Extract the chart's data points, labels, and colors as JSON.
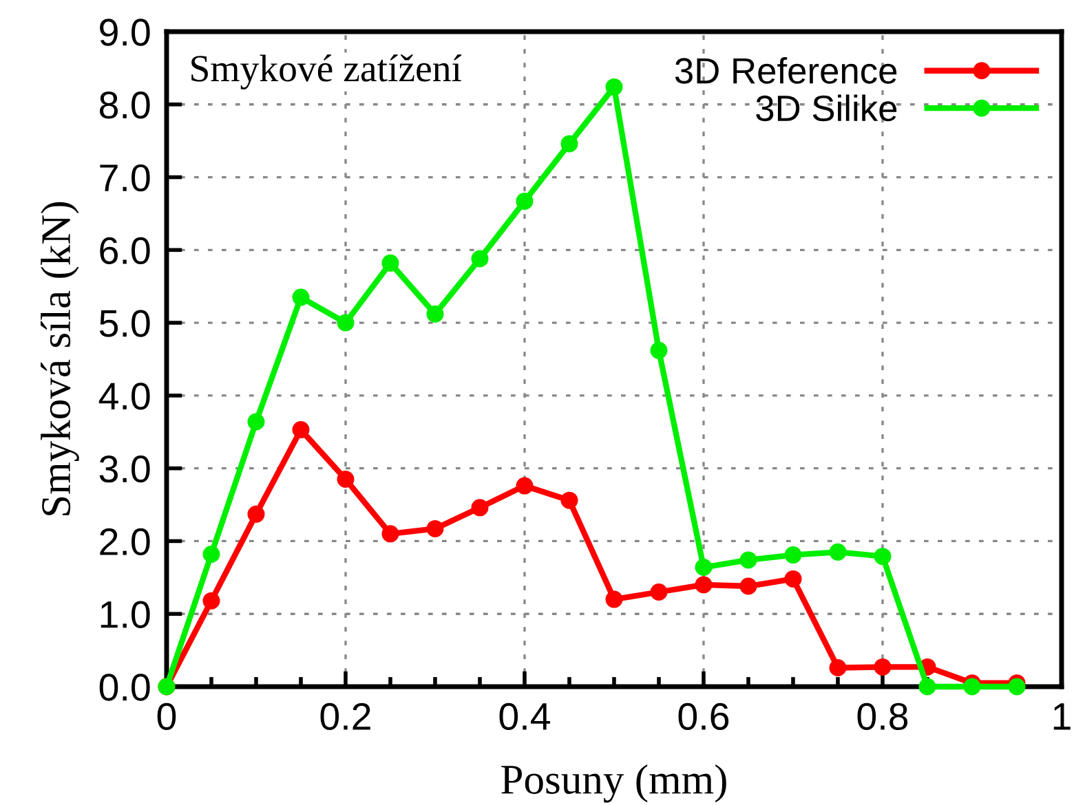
{
  "chart_data": {
    "type": "line",
    "title": "Smykové zatížení",
    "xlabel": "Posuny (mm)",
    "ylabel": "Smyková síla (kN)",
    "x": [
      0,
      0.05,
      0.1,
      0.15,
      0.2,
      0.25,
      0.3,
      0.35,
      0.4,
      0.45,
      0.5,
      0.55,
      0.6,
      0.65,
      0.7,
      0.75,
      0.8,
      0.85,
      0.9,
      0.95
    ],
    "series": [
      {
        "name": "3D Reference",
        "color": "#ff0000",
        "values": [
          0,
          1.18,
          2.37,
          3.53,
          2.85,
          2.1,
          2.17,
          2.46,
          2.76,
          2.56,
          1.2,
          1.3,
          1.4,
          1.38,
          1.48,
          0.26,
          0.27,
          0.27,
          0.05,
          0.05
        ]
      },
      {
        "name": "3D Silike",
        "color": "#00ee00",
        "values": [
          0,
          1.82,
          3.64,
          5.35,
          5.0,
          5.82,
          5.12,
          5.88,
          6.67,
          7.46,
          8.24,
          4.62,
          1.64,
          1.74,
          1.81,
          1.85,
          1.79,
          0,
          0,
          0
        ]
      }
    ],
    "xlim": [
      0,
      1
    ],
    "xticks": [
      0,
      0.2,
      0.4,
      0.6,
      0.8,
      1
    ],
    "ylim": [
      0,
      9
    ],
    "yticks": [
      {
        "value": 0,
        "label": "0.0"
      },
      {
        "value": 1,
        "label": "1.0"
      },
      {
        "value": 2,
        "label": "2.0"
      },
      {
        "value": 3,
        "label": "3.0"
      },
      {
        "value": 4,
        "label": "4.0"
      },
      {
        "value": 5,
        "label": "5.0"
      },
      {
        "value": 6,
        "label": "6.0"
      },
      {
        "value": 7,
        "label": "7.0"
      },
      {
        "value": 8,
        "label": "8.0"
      },
      {
        "value": 9,
        "label": "9.0"
      }
    ],
    "grid": true,
    "legend": "top right",
    "marker": "circle",
    "line_style": "solid"
  }
}
